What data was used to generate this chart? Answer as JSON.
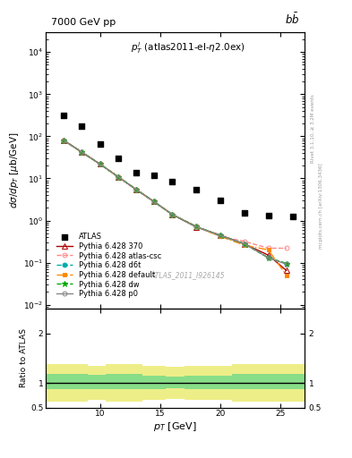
{
  "title_left": "7000 GeV pp",
  "title_right": "b$\\bar{b}$",
  "annotation": "$p_T^l$ (atlas2011-el-$\\eta$2.0ex)",
  "watermark": "ATLAS_2011_I926145",
  "right_label1": "Rivet 3.1.10, ≥ 3.2M events",
  "right_label2": "mcplots.cern.ch [arXiv:1306.3436]",
  "xlabel": "$p_T$ [GeV]",
  "ylabel": "$d\\sigma/dp_T$ [$\\mu$b/GeV]",
  "ylabel_ratio": "Ratio to ATLAS",
  "xlim": [
    5.5,
    27
  ],
  "ylim_log": [
    0.008,
    30000
  ],
  "ylim_ratio": [
    0.5,
    2.5
  ],
  "atlas_x": [
    7.0,
    8.5,
    10.0,
    11.5,
    13.0,
    14.5,
    16.0,
    18.0,
    20.0,
    22.0,
    24.0,
    26.0
  ],
  "atlas_y": [
    320,
    175,
    65,
    30,
    14,
    12,
    8.5,
    5.5,
    3.0,
    1.5,
    1.3,
    1.25
  ],
  "pt_centers": [
    7.0,
    8.5,
    10.0,
    11.5,
    13.0,
    14.5,
    16.0,
    18.0,
    20.0,
    22.0,
    24.0,
    25.5
  ],
  "py370_y": [
    80,
    42,
    22,
    11,
    5.5,
    2.8,
    1.4,
    0.7,
    0.45,
    0.28,
    0.15,
    0.065
  ],
  "py_atlascsc_y": [
    80,
    42,
    22,
    11,
    5.5,
    2.8,
    1.4,
    0.72,
    0.42,
    0.32,
    0.22,
    0.22
  ],
  "py_d6t_y": [
    80,
    42,
    22,
    11,
    5.5,
    2.8,
    1.4,
    0.72,
    0.44,
    0.28,
    0.13,
    0.095
  ],
  "py_default_y": [
    80,
    42,
    22,
    11,
    5.5,
    2.8,
    1.4,
    0.72,
    0.42,
    0.26,
    0.2,
    0.05
  ],
  "py_dw_y": [
    80,
    42,
    22,
    11,
    5.5,
    2.8,
    1.4,
    0.72,
    0.44,
    0.28,
    0.13,
    0.095
  ],
  "py_p0_y": [
    80,
    42,
    22,
    11,
    5.5,
    2.8,
    1.4,
    0.72,
    0.44,
    0.28,
    0.13,
    0.092
  ],
  "color_370": "#aa0000",
  "color_atlascsc": "#ff8888",
  "color_d6t": "#00aaaa",
  "color_default": "#ff8800",
  "color_dw": "#00aa00",
  "color_p0": "#888888",
  "ratio_yellow_top": [
    1.38,
    1.38,
    1.35,
    1.38,
    1.38,
    1.35,
    1.32,
    1.35,
    1.35,
    1.38,
    1.38,
    1.38
  ],
  "ratio_yellow_bot": [
    0.62,
    0.62,
    0.65,
    0.62,
    0.62,
    0.65,
    0.68,
    0.65,
    0.65,
    0.62,
    0.62,
    0.62
  ],
  "ratio_green_top": [
    1.18,
    1.18,
    1.16,
    1.18,
    1.18,
    1.15,
    1.13,
    1.15,
    1.15,
    1.18,
    1.18,
    1.18
  ],
  "ratio_green_bot": [
    0.87,
    0.87,
    0.88,
    0.87,
    0.87,
    0.88,
    0.9,
    0.88,
    0.88,
    0.87,
    0.87,
    0.87
  ],
  "ratio_x_edges": [
    5.5,
    7.5,
    9.0,
    10.5,
    12.0,
    13.5,
    15.5,
    17.0,
    19.0,
    21.0,
    23.0,
    25.0,
    27.0
  ]
}
